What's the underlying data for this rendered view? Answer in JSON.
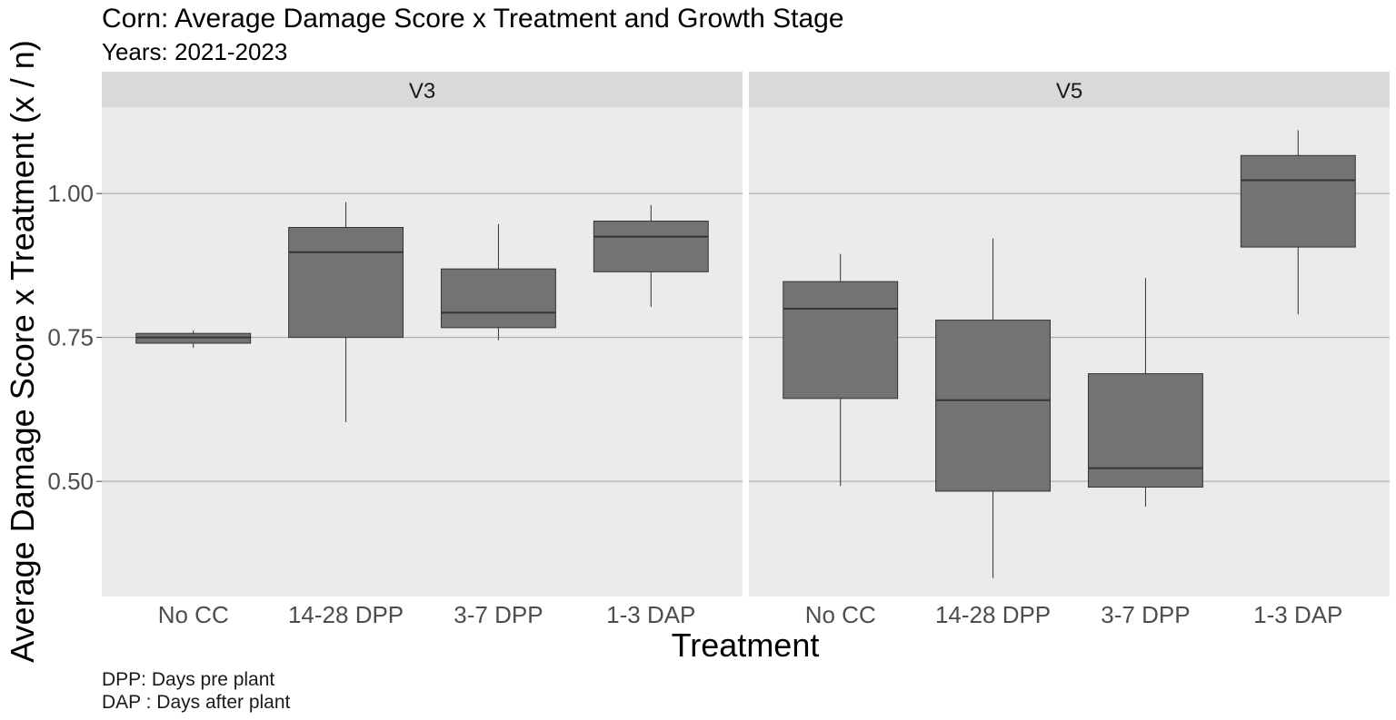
{
  "chart_data": {
    "type": "boxplot",
    "title": "Corn: Average Damage Score x Treatment and Growth Stage",
    "subtitle": "Years: 2021-2023",
    "xlabel": "Treatment",
    "ylabel": "Average Damage Score x Treatment (x / n)",
    "ylim": [
      0.3,
      1.15
    ],
    "yticks": [
      0.5,
      0.75,
      1.0
    ],
    "ytick_labels": [
      "0.50",
      "0.75",
      "1.00"
    ],
    "categories": [
      "No CC",
      "14-28 DPP",
      "3-7 DPP",
      "1-3 DAP"
    ],
    "grid": true,
    "fill_color": "#737373",
    "panel_color": "#ebebeb",
    "strip_color": "#d9d9d9",
    "caption": [
      "DPP: Days pre plant",
      "DAP : Days after plant"
    ],
    "facets": [
      {
        "label": "V3",
        "boxes": [
          {
            "category": "No CC",
            "min": 0.732,
            "q1": 0.74,
            "median": 0.75,
            "q3": 0.757,
            "max": 0.762
          },
          {
            "category": "14-28 DPP",
            "min": 0.603,
            "q1": 0.75,
            "median": 0.898,
            "q3": 0.941,
            "max": 0.985
          },
          {
            "category": "3-7 DPP",
            "min": 0.745,
            "q1": 0.767,
            "median": 0.793,
            "q3": 0.869,
            "max": 0.947
          },
          {
            "category": "1-3 DAP",
            "min": 0.803,
            "q1": 0.864,
            "median": 0.925,
            "q3": 0.952,
            "max": 0.98
          }
        ]
      },
      {
        "label": "V5",
        "boxes": [
          {
            "category": "No CC",
            "min": 0.492,
            "q1": 0.644,
            "median": 0.8,
            "q3": 0.847,
            "max": 0.895
          },
          {
            "category": "14-28 DPP",
            "min": 0.332,
            "q1": 0.483,
            "median": 0.641,
            "q3": 0.78,
            "max": 0.922
          },
          {
            "category": "3-7 DPP",
            "min": 0.456,
            "q1": 0.49,
            "median": 0.523,
            "q3": 0.687,
            "max": 0.853
          },
          {
            "category": "1-3 DAP",
            "min": 0.79,
            "q1": 0.907,
            "median": 1.023,
            "q3": 1.066,
            "max": 1.11
          }
        ]
      }
    ]
  }
}
